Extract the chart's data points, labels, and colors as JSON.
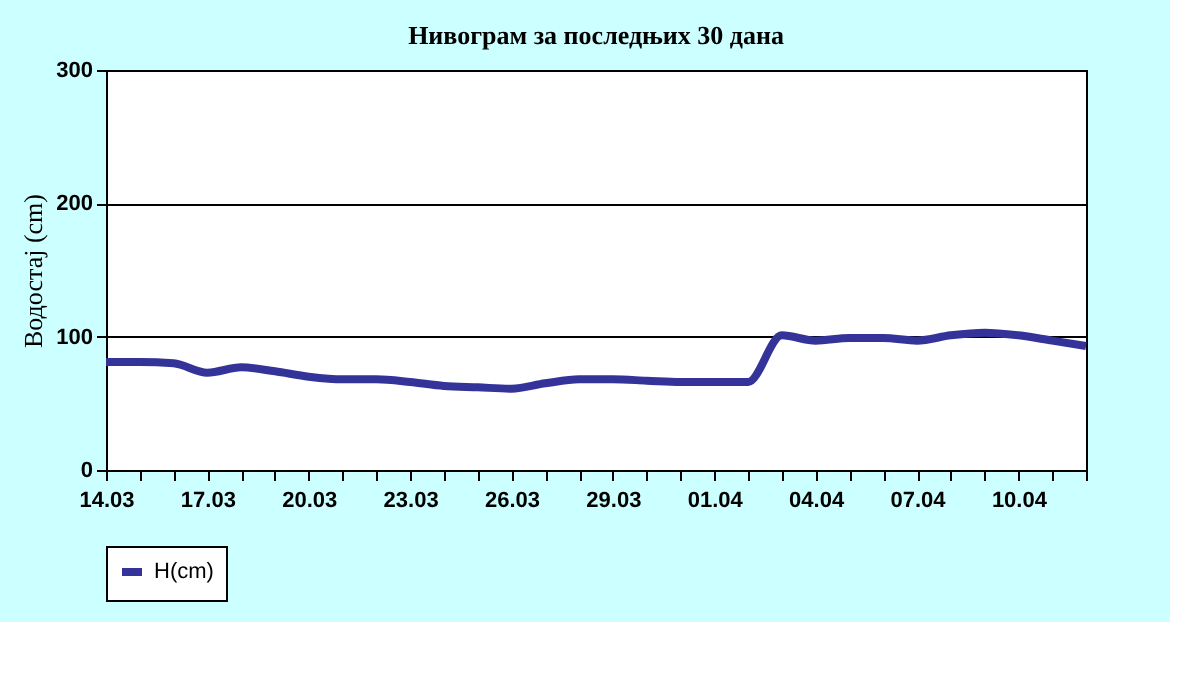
{
  "chart_data": {
    "type": "line",
    "title": "Нивограм за последњих 30 дана",
    "ylabel": "Водостај (cm)",
    "categories": [
      "14.03",
      null,
      null,
      "17.03",
      null,
      null,
      "20.03",
      null,
      null,
      "23.03",
      null,
      null,
      "26.03",
      null,
      null,
      "29.03",
      null,
      null,
      "01.04",
      null,
      null,
      "04.04",
      null,
      null,
      "07.04",
      null,
      null,
      "10.04",
      null,
      null
    ],
    "series": [
      {
        "name": "H(cm)",
        "color": "#333399",
        "values": [
          81,
          81,
          80,
          73,
          77,
          74,
          70,
          68,
          68,
          66,
          63,
          62,
          61,
          65,
          68,
          68,
          67,
          66,
          66,
          66,
          101,
          97,
          99,
          99,
          97,
          101,
          103,
          101,
          97,
          93
        ]
      }
    ],
    "ylim": [
      0,
      300
    ],
    "yticks": [
      0,
      100,
      200,
      300
    ],
    "grid": "y",
    "legend": "bottom",
    "marker": "none",
    "line_style": "solid"
  }
}
